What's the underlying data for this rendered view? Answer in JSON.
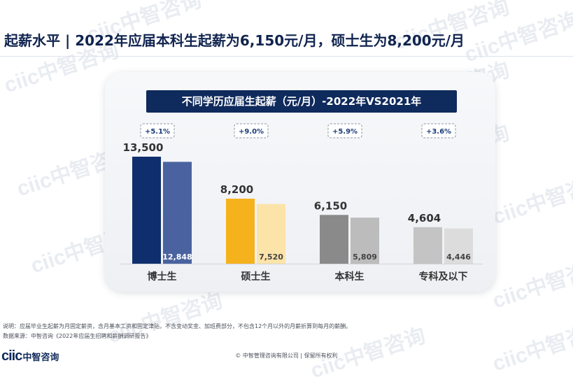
{
  "page": {
    "title": "起薪水平 | 2022年应届本科生起薪为6,150元/月，硕士生为8,200元/月",
    "watermark_text": "ciic中智咨询",
    "notes": [
      "说明：应届毕业生起薪为月固定薪资，含月基本工资和固定津贴，不含变动奖金、加班费部分，不包含12个月以外的月薪折算到每月的薪酬。",
      "数据来源：中智咨询《2022年应届生招聘和薪酬调研报告》"
    ],
    "logo_en": "ciic",
    "logo_cn": "中智咨询",
    "copyright": "© 中智管理咨询有限公司 | 保留所有权利"
  },
  "chart_data": {
    "type": "bar",
    "title": "不同学历应届生起薪（元/月）-2022年VS2021年",
    "categories": [
      "博士生",
      "硕士生",
      "本科生",
      "专科及以下"
    ],
    "series": [
      {
        "name": "2022年",
        "values": [
          13500,
          8200,
          6150,
          4604
        ],
        "labels": [
          "13,500",
          "8,200",
          "6,150",
          "4,604"
        ]
      },
      {
        "name": "2021年",
        "values": [
          12848,
          7520,
          5809,
          4446
        ],
        "labels": [
          "12,848",
          "7,520",
          "5,809",
          "4,446"
        ]
      }
    ],
    "growth_labels": [
      "+5.1%",
      "+9.0%",
      "+5.9%",
      "+3.6%"
    ],
    "ylim": [
      0,
      13500
    ],
    "grid": false,
    "legend": "none",
    "colors": {
      "2022": [
        "#0f2e6e",
        "#f6b21c",
        "#8a8a8a",
        "#c4c4c4"
      ],
      "2021": [
        "#4a63a0",
        "#fce3a8",
        "#bcbcbc",
        "#dcdcdc"
      ],
      "title_bg": "#0f2a5c",
      "growth_text": "#1b3c7a"
    }
  }
}
